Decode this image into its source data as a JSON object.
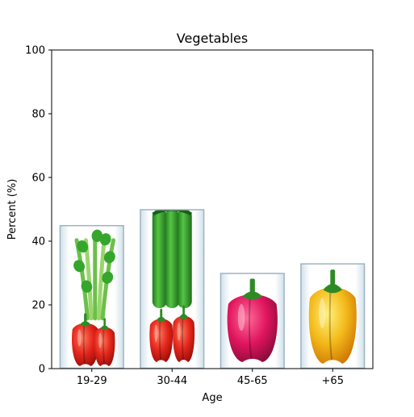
{
  "chart_data": {
    "type": "bar",
    "title": "Vegetables",
    "xlabel": "Age",
    "ylabel": "Percent (%)",
    "categories": [
      "19-29",
      "30-44",
      "45-65",
      "+65"
    ],
    "values": [
      45,
      50,
      30,
      33
    ],
    "ylim": [
      0,
      100
    ],
    "yticks": [
      0,
      20,
      40,
      60,
      80,
      100
    ],
    "grid": false,
    "legend": "none",
    "bar_fill": "vegetable pictograms",
    "vegetables": [
      "celery and red bell pepper",
      "green zucchini and red bell pepper",
      "pink bell pepper",
      "yellow bell pepper"
    ],
    "colors": {
      "axis": "#000000",
      "bar_border": "#9fb4c0",
      "red_pepper": "#e4261c",
      "green_leaf": "#35a62c",
      "green_zucchini": "#2f9b2c",
      "pink_pepper": "#e0155e",
      "yellow_pepper": "#f3b91a"
    }
  }
}
